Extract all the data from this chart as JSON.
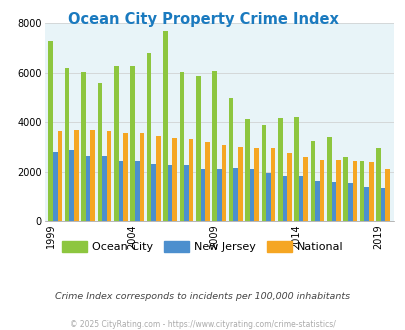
{
  "title": "Ocean City Property Crime Index",
  "subtitle": "Crime Index corresponds to incidents per 100,000 inhabitants",
  "footer": "© 2025 CityRating.com - https://www.cityrating.com/crime-statistics/",
  "years": [
    1999,
    2000,
    2001,
    2002,
    2003,
    2004,
    2005,
    2006,
    2007,
    2008,
    2009,
    2010,
    2011,
    2012,
    2013,
    2014,
    2015,
    2016,
    2017,
    2018,
    2019
  ],
  "ocean_city": [
    7280,
    6180,
    6010,
    5600,
    6280,
    6280,
    6800,
    7680,
    6030,
    5860,
    6080,
    4970,
    4140,
    3890,
    4170,
    4200,
    3250,
    3400,
    2570,
    2420,
    2970
  ],
  "new_jersey": [
    2780,
    2880,
    2620,
    2620,
    2420,
    2420,
    2300,
    2260,
    2260,
    2090,
    2100,
    2160,
    2090,
    1960,
    1820,
    1820,
    1620,
    1560,
    1530,
    1380,
    1320
  ],
  "national": [
    3660,
    3680,
    3680,
    3660,
    3570,
    3570,
    3450,
    3360,
    3330,
    3180,
    3080,
    2980,
    2960,
    2950,
    2760,
    2610,
    2480,
    2460,
    2440,
    2390,
    2110
  ],
  "ocean_city_color": "#8dc63f",
  "new_jersey_color": "#4c8fce",
  "national_color": "#f5a623",
  "bg_color": "#e8f4f8",
  "title_color": "#1a7abf",
  "subtitle_color": "#444444",
  "footer_color": "#aaaaaa",
  "ylim": [
    0,
    8000
  ],
  "yticks": [
    0,
    2000,
    4000,
    6000,
    8000
  ],
  "xtick_years": [
    1999,
    2004,
    2009,
    2014,
    2019
  ],
  "bar_width": 0.28,
  "grid_color": "#cccccc"
}
